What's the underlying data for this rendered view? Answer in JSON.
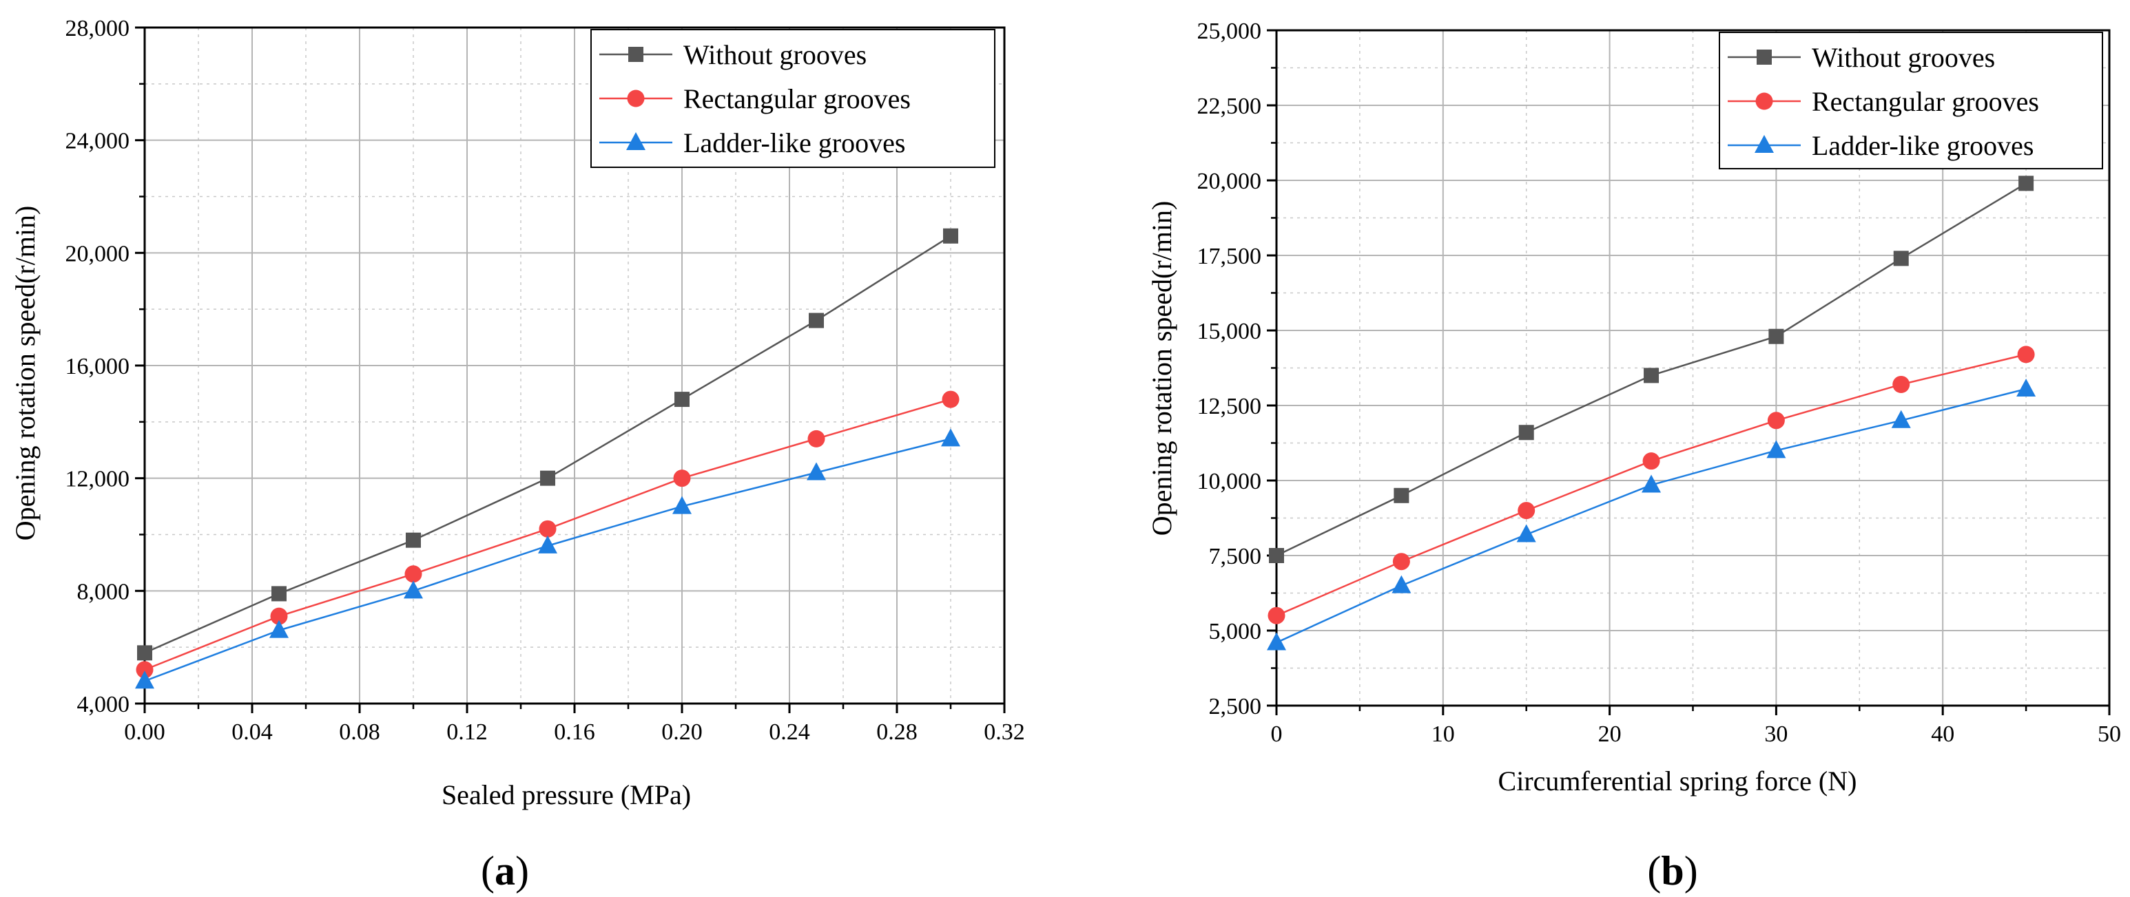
{
  "chart_data": [
    {
      "type": "line",
      "panel_label": "a",
      "title": "",
      "xlabel": "Sealed pressure (MPa)",
      "ylabel": "Opening rotation speed(r/min)",
      "xlim": [
        0,
        0.32
      ],
      "ylim": [
        4000,
        28000
      ],
      "xticks": [
        0,
        0.04,
        0.08,
        0.12,
        0.16,
        0.2,
        0.24,
        0.28,
        0.32
      ],
      "xtick_labels": [
        "0.00",
        "0.04",
        "0.08",
        "0.12",
        "0.16",
        "0.20",
        "0.24",
        "0.28",
        "0.32"
      ],
      "yticks": [
        4000,
        8000,
        12000,
        16000,
        20000,
        24000,
        28000
      ],
      "ytick_labels": [
        "4,000",
        "8,000",
        "12,000",
        "16,000",
        "20,000",
        "24,000",
        "28,000"
      ],
      "grid": true,
      "legend_position": "top-right",
      "x": [
        0,
        0.05,
        0.1,
        0.15,
        0.2,
        0.25,
        0.3
      ],
      "series": [
        {
          "name": "Without grooves",
          "color": "#555555",
          "marker": "square",
          "values": [
            5800,
            7900,
            9800,
            12000,
            14800,
            17600,
            20600
          ]
        },
        {
          "name": "Rectangular grooves",
          "color": "#f44545",
          "marker": "circle",
          "values": [
            5200,
            7100,
            8600,
            10200,
            12000,
            13400,
            14800
          ]
        },
        {
          "name": "Ladder-like grooves",
          "color": "#1e7ee0",
          "marker": "triangle",
          "values": [
            4800,
            6600,
            8000,
            9600,
            11000,
            12200,
            13400
          ]
        }
      ]
    },
    {
      "type": "line",
      "panel_label": "b",
      "title": "",
      "xlabel": "Circumferential spring force (N)",
      "ylabel": "Opening rotation speed(r/min)",
      "xlim": [
        0,
        50
      ],
      "ylim": [
        2500,
        25000
      ],
      "xticks": [
        0,
        10,
        20,
        30,
        40,
        50
      ],
      "xtick_labels": [
        "0",
        "10",
        "20",
        "30",
        "40",
        "50"
      ],
      "yticks": [
        2500,
        5000,
        7500,
        10000,
        12500,
        15000,
        17500,
        20000,
        22500,
        25000
      ],
      "ytick_labels": [
        "2,500",
        "5,000",
        "7,500",
        "10,000",
        "12,500",
        "15,000",
        "17,500",
        "20,000",
        "22,500",
        "25,000"
      ],
      "grid": true,
      "legend_position": "top-right",
      "x": [
        0,
        7.5,
        15,
        22.5,
        30,
        37.5,
        45
      ],
      "series": [
        {
          "name": "Without grooves",
          "color": "#555555",
          "marker": "square",
          "values": [
            7500,
            9500,
            11600,
            13500,
            14800,
            17400,
            19900
          ]
        },
        {
          "name": "Rectangular grooves",
          "color": "#f44545",
          "marker": "circle",
          "values": [
            5500,
            7300,
            9000,
            10650,
            12000,
            13200,
            14200
          ]
        },
        {
          "name": "Ladder-like grooves",
          "color": "#1e7ee0",
          "marker": "triangle",
          "values": [
            4600,
            6500,
            8200,
            9850,
            11000,
            12000,
            13050
          ]
        }
      ]
    }
  ]
}
